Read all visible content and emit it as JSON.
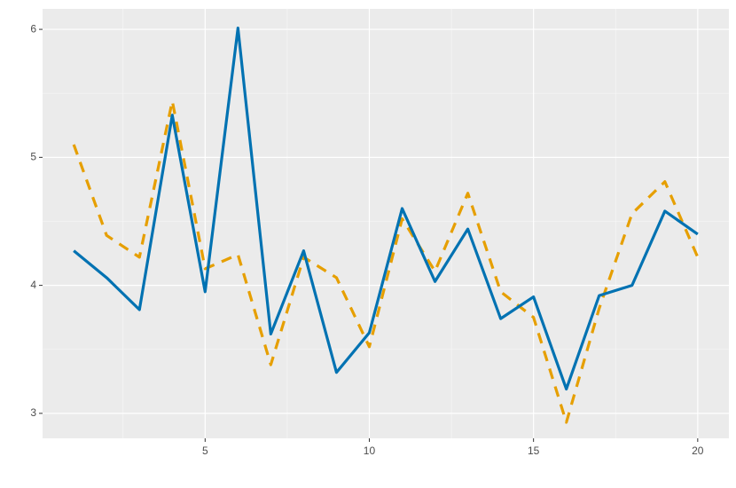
{
  "chart_data": {
    "type": "line",
    "x": [
      1,
      2,
      3,
      4,
      5,
      6,
      7,
      8,
      9,
      10,
      11,
      12,
      13,
      14,
      15,
      16,
      17,
      18,
      19,
      20
    ],
    "series": [
      {
        "color": "#E69F00",
        "linestyle": "dashed",
        "values": [
          5.1,
          4.39,
          4.22,
          5.44,
          4.13,
          4.24,
          3.38,
          4.22,
          4.06,
          3.52,
          4.52,
          4.11,
          4.72,
          3.95,
          3.75,
          2.93,
          3.82,
          4.56,
          4.81,
          4.22
        ]
      },
      {
        "color": "#0072B2",
        "linestyle": "solid",
        "values": [
          4.27,
          4.06,
          3.81,
          5.33,
          3.95,
          6.01,
          3.62,
          4.27,
          3.32,
          3.63,
          4.6,
          4.03,
          4.44,
          3.74,
          3.91,
          3.19,
          3.92,
          4.0,
          4.58,
          4.4
        ]
      }
    ],
    "xlim": [
      0.05,
      20.95
    ],
    "xticks": [
      5,
      10,
      15,
      20
    ],
    "x_minor_grid": [
      2.5,
      7.5,
      12.5,
      17.5
    ],
    "ylim": [
      2.805,
      6.16
    ],
    "yticks": [
      3,
      4,
      5,
      6
    ],
    "y_minor_grid": [
      3.5,
      4.5,
      5.5
    ],
    "grid": true
  }
}
